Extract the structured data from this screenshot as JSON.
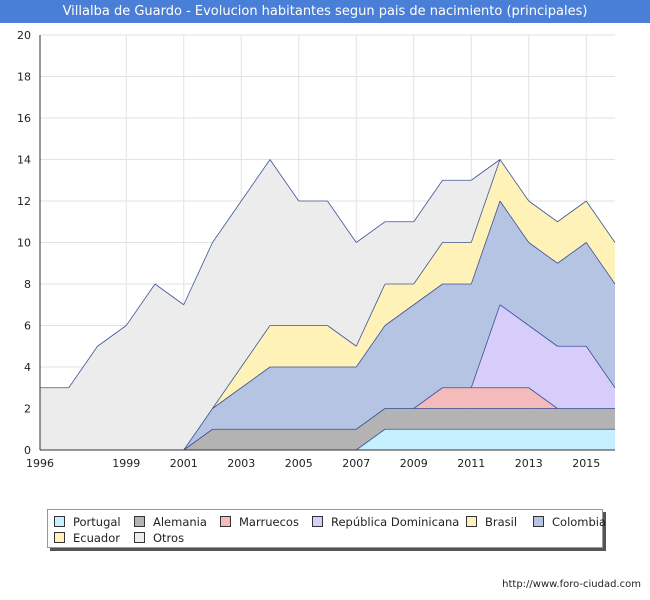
{
  "header": {
    "title": "Villalba de Guardo - Evolucion habitantes segun pais de nacimiento (principales)"
  },
  "footer": {
    "source": "http://www.foro-ciudad.com"
  },
  "chart_data": {
    "type": "area",
    "stacked": true,
    "x_tick_labels": [
      "1996",
      "1999",
      "2001",
      "2003",
      "2005",
      "2007",
      "2009",
      "2011",
      "2013",
      "2015"
    ],
    "y_tick_labels": [
      "0",
      "2",
      "4",
      "6",
      "8",
      "10",
      "12",
      "14",
      "16",
      "18",
      "20"
    ],
    "ylim": [
      0,
      20
    ],
    "grid": true,
    "legend_position": "bottom",
    "x": [
      1996,
      1997,
      1998,
      1999,
      2000,
      2001,
      2002,
      2003,
      2004,
      2005,
      2006,
      2007,
      2008,
      2009,
      2010,
      2011,
      2012,
      2013,
      2014,
      2015,
      2016
    ],
    "series": [
      {
        "name": "Portugal",
        "color": "#c6efff",
        "values": [
          0,
          0,
          0,
          0,
          0,
          0,
          0,
          0,
          0,
          0,
          0,
          0,
          1,
          1,
          1,
          1,
          1,
          1,
          1,
          1,
          1
        ]
      },
      {
        "name": "Alemania",
        "color": "#b3b3b3",
        "values": [
          0,
          0,
          0,
          0,
          0,
          0,
          1,
          1,
          1,
          1,
          1,
          1,
          1,
          1,
          1,
          1,
          1,
          1,
          1,
          1,
          1
        ]
      },
      {
        "name": "Marruecos",
        "color": "#f4bbbb",
        "values": [
          0,
          0,
          0,
          0,
          0,
          0,
          0,
          0,
          0,
          0,
          0,
          0,
          0,
          0,
          1,
          1,
          1,
          1,
          0,
          0,
          0
        ]
      },
      {
        "name": "República Dominicana",
        "color": "#d7cdfa",
        "values": [
          0,
          0,
          0,
          0,
          0,
          0,
          0,
          0,
          0,
          0,
          0,
          0,
          0,
          0,
          0,
          0,
          4,
          3,
          3,
          3,
          1
        ]
      },
      {
        "name": "Brasil",
        "color": "#fff2b8",
        "values": [
          0,
          0,
          0,
          0,
          0,
          0,
          0,
          0,
          0,
          0,
          0,
          0,
          0,
          0,
          0,
          0,
          0,
          0,
          0,
          0,
          0
        ]
      },
      {
        "name": "Colombia",
        "color": "#b6c4e4",
        "values": [
          0,
          0,
          0,
          0,
          0,
          0,
          1,
          2,
          3,
          3,
          3,
          3,
          4,
          5,
          5,
          5,
          5,
          4,
          4,
          5,
          5
        ]
      },
      {
        "name": "Ecuador",
        "color": "#fff2b8",
        "values": [
          0,
          0,
          0,
          0,
          0,
          0,
          0,
          1,
          2,
          2,
          2,
          1,
          2,
          1,
          2,
          2,
          2,
          2,
          2,
          2,
          2
        ]
      },
      {
        "name": "Otros",
        "color": "#ececec",
        "values": [
          3,
          3,
          5,
          6,
          8,
          7,
          8,
          8,
          8,
          6,
          6,
          5,
          3,
          3,
          3,
          3,
          0,
          0,
          0,
          0,
          0
        ]
      }
    ],
    "line_color": "#1f3a8a"
  }
}
